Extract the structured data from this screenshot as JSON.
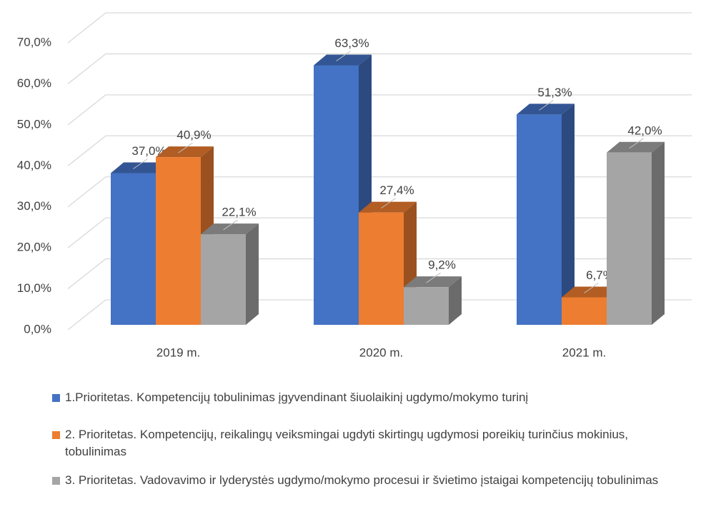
{
  "chart_data": {
    "type": "bar3d",
    "categories": [
      "2019 m.",
      "2020 m.",
      "2021 m."
    ],
    "series": [
      {
        "name": "1.Prioritetas. Kompetencijų tobulinimas įgyvendinant šiuolaikinį ugdymo/mokymo turinį",
        "color": "#4472c4",
        "values": [
          37.0,
          63.3,
          51.3
        ],
        "value_labels": [
          "37,0%",
          "63,3%",
          "51,3%"
        ]
      },
      {
        "name": "2. Prioritetas. Kompetencijų, reikalingų veiksmingai ugdyti skirtingų ugdymosi poreikių turinčius mokinius, tobulinimas",
        "color": "#ed7d31",
        "values": [
          40.9,
          27.4,
          6.7
        ],
        "value_labels": [
          "40,9%",
          "27,4%",
          "6,7%"
        ]
      },
      {
        "name": "3. Prioritetas. Vadovavimo ir lyderystės ugdymo/mokymo procesui ir švietimo įstaigai kompetencijų tobulinimas",
        "color": "#a5a5a5",
        "values": [
          22.1,
          9.2,
          42.0
        ],
        "value_labels": [
          "22,1%",
          "9,2%",
          "42,0%"
        ]
      }
    ],
    "ylim": [
      0,
      70
    ],
    "yticks": [
      {
        "value": 0,
        "label": "0,0%"
      },
      {
        "value": 10,
        "label": "10,0%"
      },
      {
        "value": 20,
        "label": "20,0%"
      },
      {
        "value": 30,
        "label": "30,0%"
      },
      {
        "value": 40,
        "label": "40,0%"
      },
      {
        "value": 50,
        "label": "50,0%"
      },
      {
        "value": 60,
        "label": "60,0%"
      },
      {
        "value": 70,
        "label": "70,0%"
      }
    ],
    "grid": true,
    "legend": "bottom"
  }
}
